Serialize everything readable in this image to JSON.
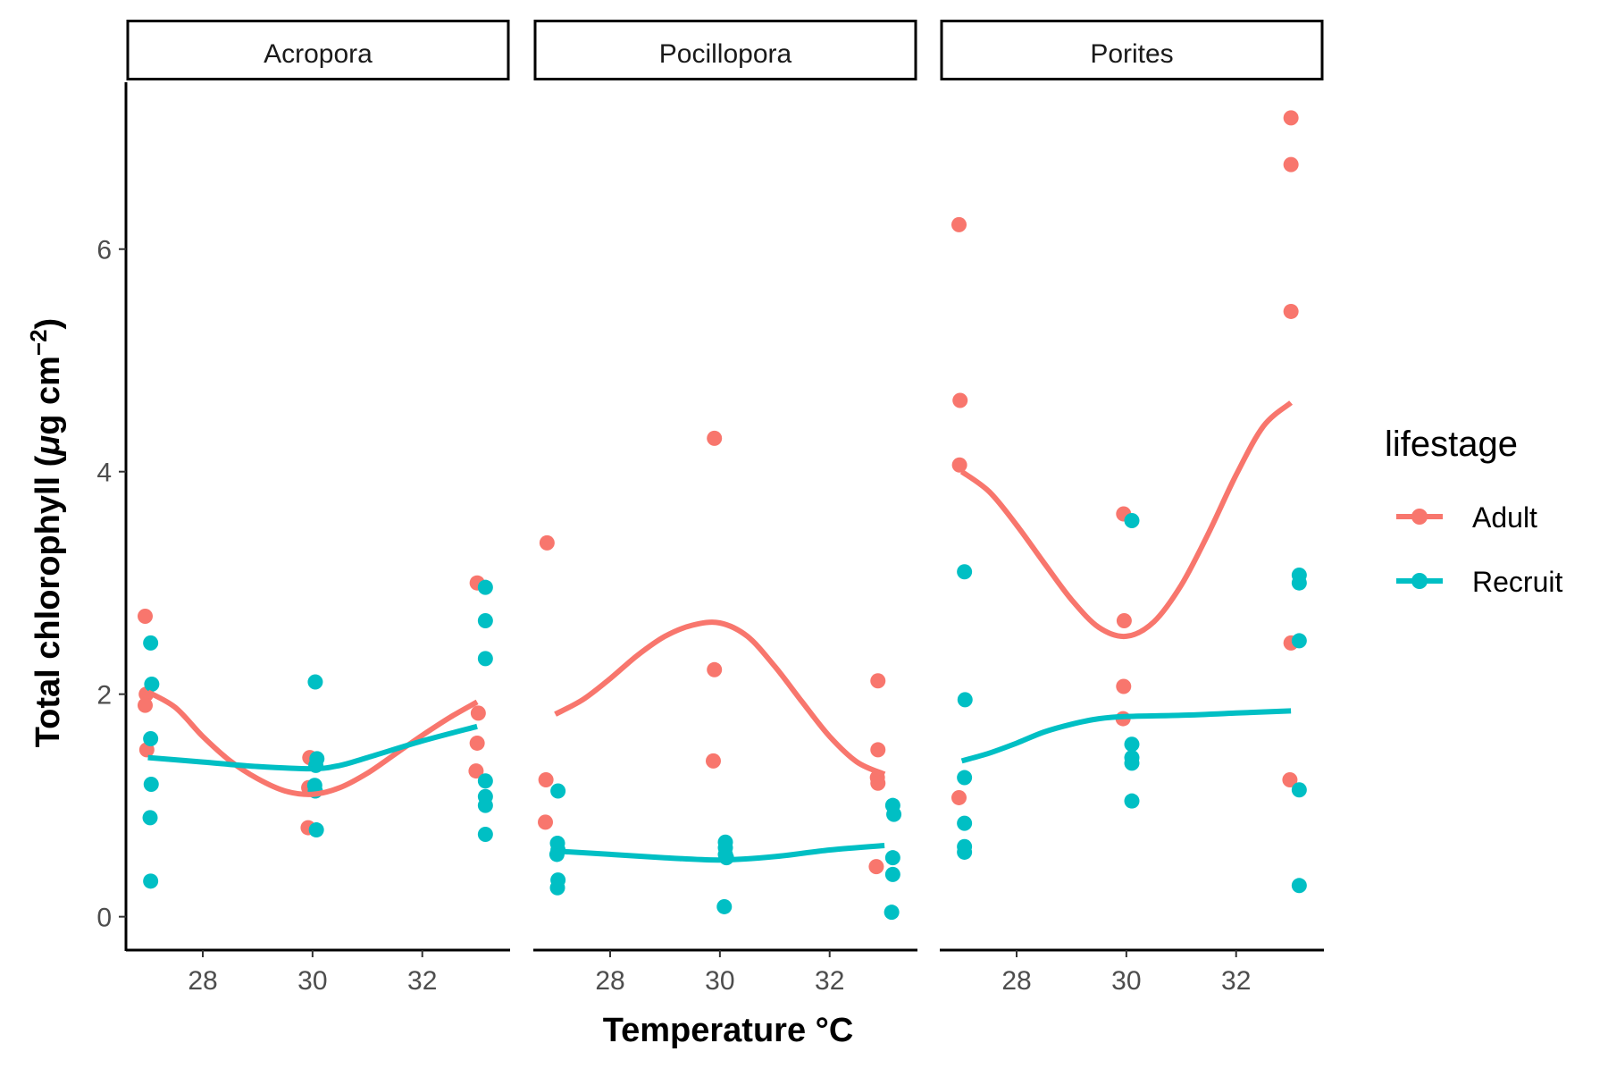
{
  "chart_data": {
    "type": "scatter",
    "subtype": "faceted scatter with smoothed trend lines",
    "xlabel": "Temperature °C",
    "ylabel_main": "Total chlorophyll (",
    "ylabel_mu": "μ",
    "ylabel_unit": "g cm",
    "ylabel_sup": "−2",
    "ylabel_close": ")",
    "xlim": [
      26.6,
      33.6
    ],
    "ylim": [
      -0.3,
      7.5
    ],
    "x_ticks": [
      "28",
      "30",
      "32"
    ],
    "x_tick_values": [
      28,
      30,
      32
    ],
    "y_ticks": [
      "0",
      "2",
      "4",
      "6"
    ],
    "y_tick_values": [
      0,
      2,
      4,
      6
    ],
    "legend_title": "lifestage",
    "legend_position": "right",
    "grid": false,
    "series_meta": [
      {
        "name": "Adult",
        "color": "#F8766D"
      },
      {
        "name": "Recruit",
        "color": "#00BFC4"
      }
    ],
    "facets": [
      {
        "label": "Acropora",
        "series": [
          {
            "name": "Adult",
            "points": [
              [
                26.95,
                2.7
              ],
              [
                26.97,
                2.0
              ],
              [
                26.95,
                1.9
              ],
              [
                26.98,
                1.5
              ],
              [
                29.95,
                1.43
              ],
              [
                29.93,
                1.16
              ],
              [
                29.92,
                0.8
              ],
              [
                33.0,
                3.0
              ],
              [
                33.02,
                1.83
              ],
              [
                33.0,
                1.56
              ],
              [
                32.98,
                1.31
              ]
            ],
            "smooth": [
              [
                27,
                2.02
              ],
              [
                27.5,
                1.88
              ],
              [
                28,
                1.62
              ],
              [
                28.5,
                1.4
              ],
              [
                29,
                1.24
              ],
              [
                29.5,
                1.13
              ],
              [
                30,
                1.1
              ],
              [
                30.5,
                1.16
              ],
              [
                31,
                1.29
              ],
              [
                31.5,
                1.46
              ],
              [
                32,
                1.63
              ],
              [
                32.5,
                1.79
              ],
              [
                33,
                1.93
              ]
            ]
          },
          {
            "name": "Recruit",
            "points": [
              [
                27.05,
                2.46
              ],
              [
                27.07,
                2.09
              ],
              [
                27.05,
                1.6
              ],
              [
                27.06,
                1.19
              ],
              [
                27.04,
                0.89
              ],
              [
                27.05,
                0.32
              ],
              [
                30.05,
                2.11
              ],
              [
                30.08,
                1.42
              ],
              [
                30.06,
                1.36
              ],
              [
                30.04,
                1.18
              ],
              [
                30.05,
                1.13
              ],
              [
                30.07,
                0.78
              ],
              [
                33.15,
                2.96
              ],
              [
                33.15,
                2.66
              ],
              [
                33.15,
                2.32
              ],
              [
                33.15,
                1.22
              ],
              [
                33.15,
                1.08
              ],
              [
                33.15,
                1.0
              ],
              [
                33.15,
                0.74
              ]
            ],
            "smooth": [
              [
                27,
                1.43
              ],
              [
                28,
                1.39
              ],
              [
                29,
                1.35
              ],
              [
                30,
                1.33
              ],
              [
                30.5,
                1.36
              ],
              [
                31,
                1.43
              ],
              [
                32,
                1.58
              ],
              [
                33,
                1.71
              ]
            ]
          }
        ]
      },
      {
        "label": "Pocillopora",
        "series": [
          {
            "name": "Adult",
            "points": [
              [
                26.85,
                3.36
              ],
              [
                26.83,
                1.23
              ],
              [
                26.82,
                0.85
              ],
              [
                29.9,
                4.3
              ],
              [
                29.9,
                2.22
              ],
              [
                29.88,
                1.4
              ],
              [
                32.88,
                2.12
              ],
              [
                32.88,
                1.5
              ],
              [
                32.87,
                1.25
              ],
              [
                32.88,
                1.2
              ],
              [
                32.85,
                0.45
              ]
            ],
            "smooth": [
              [
                27,
                1.82
              ],
              [
                27.5,
                1.95
              ],
              [
                28,
                2.14
              ],
              [
                28.5,
                2.35
              ],
              [
                29,
                2.52
              ],
              [
                29.5,
                2.62
              ],
              [
                30,
                2.64
              ],
              [
                30.5,
                2.52
              ],
              [
                31,
                2.25
              ],
              [
                31.5,
                1.93
              ],
              [
                32,
                1.62
              ],
              [
                32.5,
                1.39
              ],
              [
                33,
                1.28
              ]
            ]
          },
          {
            "name": "Recruit",
            "points": [
              [
                27.05,
                1.13
              ],
              [
                27.04,
                0.66
              ],
              [
                27.05,
                0.6
              ],
              [
                27.03,
                0.56
              ],
              [
                27.05,
                0.33
              ],
              [
                27.04,
                0.26
              ],
              [
                30.1,
                0.67
              ],
              [
                30.1,
                0.62
              ],
              [
                30.1,
                0.56
              ],
              [
                30.12,
                0.53
              ],
              [
                30.08,
                0.09
              ],
              [
                33.15,
                1.0
              ],
              [
                33.17,
                0.92
              ],
              [
                33.15,
                0.53
              ],
              [
                33.15,
                0.38
              ],
              [
                33.13,
                0.04
              ]
            ],
            "smooth": [
              [
                27,
                0.59
              ],
              [
                28,
                0.56
              ],
              [
                29,
                0.53
              ],
              [
                30,
                0.51
              ],
              [
                31,
                0.54
              ],
              [
                32,
                0.6
              ],
              [
                33,
                0.64
              ]
            ]
          }
        ]
      },
      {
        "label": "Porites",
        "series": [
          {
            "name": "Adult",
            "points": [
              [
                26.95,
                6.22
              ],
              [
                26.97,
                4.64
              ],
              [
                26.96,
                4.06
              ],
              [
                26.95,
                1.07
              ],
              [
                29.95,
                3.62
              ],
              [
                29.96,
                2.66
              ],
              [
                29.95,
                2.07
              ],
              [
                29.94,
                1.78
              ],
              [
                33.0,
                7.18
              ],
              [
                33.0,
                6.76
              ],
              [
                33.0,
                5.44
              ],
              [
                33.0,
                2.46
              ],
              [
                32.98,
                1.23
              ]
            ],
            "smooth": [
              [
                27,
                4.0
              ],
              [
                27.5,
                3.82
              ],
              [
                28,
                3.52
              ],
              [
                28.5,
                3.18
              ],
              [
                29,
                2.85
              ],
              [
                29.5,
                2.6
              ],
              [
                30,
                2.52
              ],
              [
                30.5,
                2.65
              ],
              [
                31,
                2.98
              ],
              [
                31.5,
                3.45
              ],
              [
                32,
                3.97
              ],
              [
                32.5,
                4.41
              ],
              [
                33,
                4.62
              ]
            ]
          },
          {
            "name": "Recruit",
            "points": [
              [
                27.05,
                3.1
              ],
              [
                27.06,
                1.95
              ],
              [
                27.05,
                1.25
              ],
              [
                27.05,
                0.84
              ],
              [
                27.05,
                0.63
              ],
              [
                27.05,
                0.58
              ],
              [
                30.1,
                3.56
              ],
              [
                30.1,
                1.55
              ],
              [
                30.1,
                1.43
              ],
              [
                30.1,
                1.38
              ],
              [
                30.1,
                1.04
              ],
              [
                33.15,
                3.07
              ],
              [
                33.15,
                3.0
              ],
              [
                33.15,
                2.48
              ],
              [
                33.15,
                1.14
              ],
              [
                33.15,
                0.28
              ]
            ],
            "smooth": [
              [
                27,
                1.4
              ],
              [
                27.5,
                1.47
              ],
              [
                28,
                1.56
              ],
              [
                28.5,
                1.66
              ],
              [
                29,
                1.73
              ],
              [
                29.5,
                1.78
              ],
              [
                30,
                1.8
              ],
              [
                31,
                1.81
              ],
              [
                32,
                1.83
              ],
              [
                33,
                1.85
              ]
            ]
          }
        ]
      }
    ]
  }
}
